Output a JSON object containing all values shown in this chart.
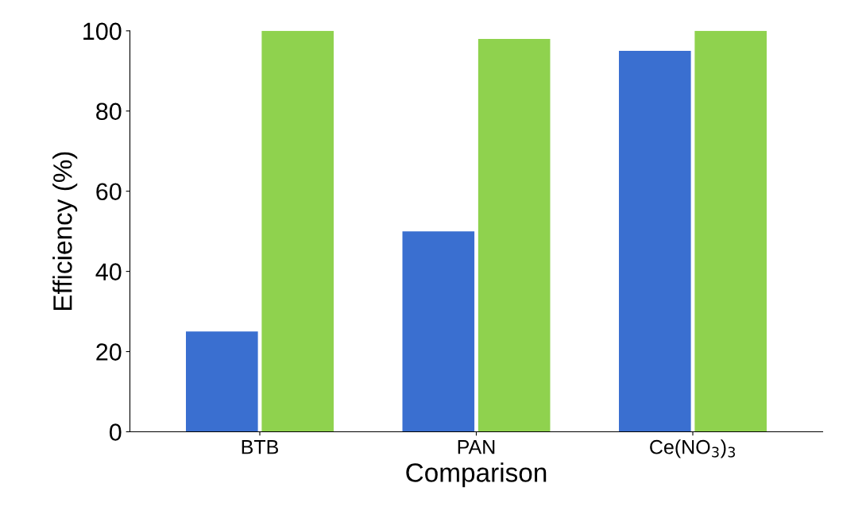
{
  "chart_data": {
    "type": "bar",
    "xlabel": "Comparison",
    "ylabel": "Efficiency (%)",
    "categories": [
      "BTB",
      "PAN",
      "Ce(NO$_{3}$)$_{3}$"
    ],
    "series": [
      {
        "color": "#3a6fd0",
        "values": [
          25,
          50,
          95
        ]
      },
      {
        "color": "#8fd24e",
        "values": [
          100,
          98,
          100
        ]
      }
    ],
    "ylim": [
      0,
      100
    ],
    "yticks": [
      0,
      20,
      40,
      60,
      80,
      100
    ],
    "grid": false
  }
}
